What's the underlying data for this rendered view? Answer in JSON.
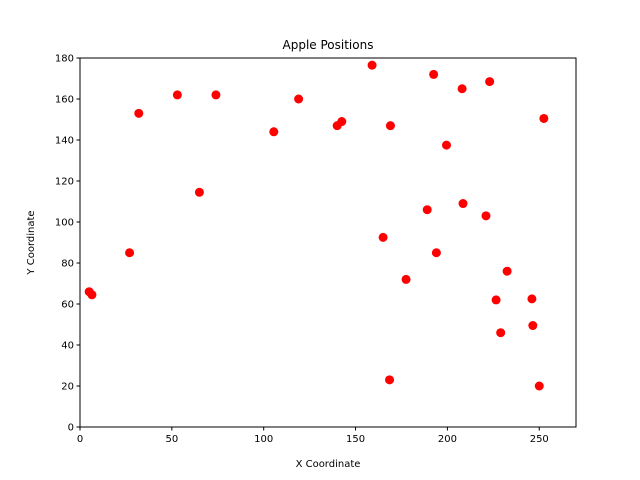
{
  "chart_data": {
    "type": "scatter",
    "title": "Apple Positions",
    "xlabel": "X Coordinate",
    "ylabel": "Y Coordinate",
    "xlim": [
      0,
      270
    ],
    "ylim": [
      0,
      180
    ],
    "xticks": [
      0,
      50,
      100,
      150,
      200,
      250
    ],
    "yticks": [
      0,
      20,
      40,
      60,
      80,
      100,
      120,
      140,
      160,
      180
    ],
    "grid": false,
    "marker_color": "#ff0000",
    "points": [
      [
        5,
        66
      ],
      [
        6.5,
        64.5
      ],
      [
        27,
        85
      ],
      [
        32,
        153
      ],
      [
        53,
        162
      ],
      [
        65,
        114.5
      ],
      [
        74,
        162
      ],
      [
        105.5,
        144
      ],
      [
        119,
        160
      ],
      [
        140,
        147
      ],
      [
        142.5,
        149
      ],
      [
        159,
        176.5
      ],
      [
        165,
        92.5
      ],
      [
        168.5,
        23
      ],
      [
        169,
        147
      ],
      [
        177.5,
        72
      ],
      [
        189,
        106
      ],
      [
        192.5,
        172
      ],
      [
        194,
        85
      ],
      [
        199.5,
        137.5
      ],
      [
        208,
        165
      ],
      [
        208.5,
        109
      ],
      [
        221,
        103
      ],
      [
        223,
        168.5
      ],
      [
        226.5,
        62
      ],
      [
        229,
        46
      ],
      [
        232.5,
        76
      ],
      [
        246,
        62.5
      ],
      [
        246.5,
        49.5
      ],
      [
        250,
        20
      ],
      [
        252.5,
        150.5
      ]
    ]
  }
}
